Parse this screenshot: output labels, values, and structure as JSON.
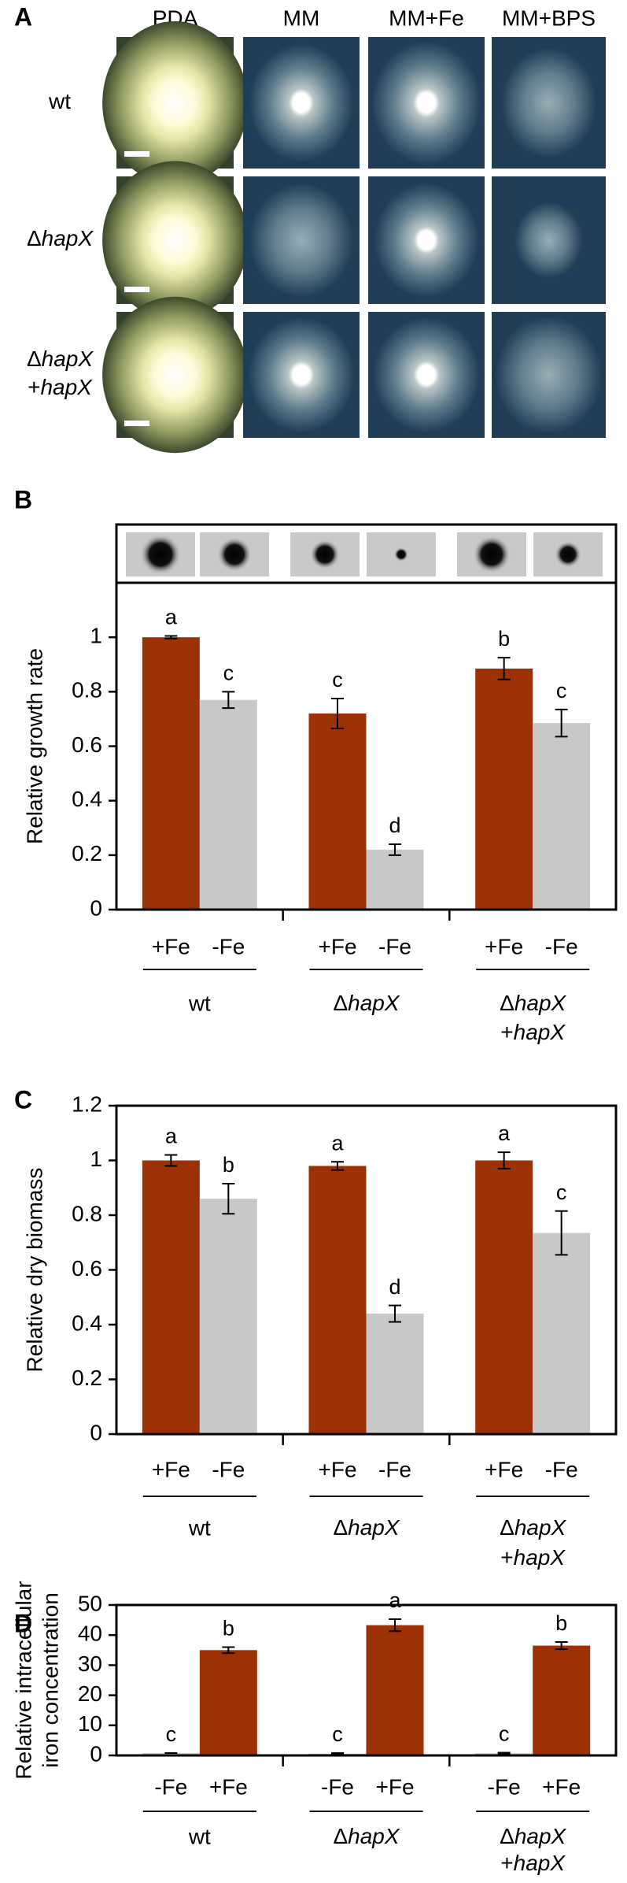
{
  "panel_a": {
    "panel": "A",
    "columns": [
      "PDA",
      "MM",
      "MM+Fe",
      "MM+BPS"
    ],
    "rows": [
      [
        "wt"
      ],
      [
        "ΔhapX"
      ],
      [
        "ΔhapX",
        "+hapX"
      ]
    ]
  },
  "chart_data": [
    {
      "type": "bar",
      "panel": "B",
      "y_label": "Relative growth rate",
      "groups": [
        [
          "wt"
        ],
        [
          "ΔhapX"
        ],
        [
          "ΔhapX",
          "+hapX"
        ]
      ],
      "ylim": [
        0,
        1.2
      ],
      "yticks": [
        0,
        0.2,
        0.4,
        0.6,
        0.8,
        1
      ],
      "series": [
        {
          "name": "+Fe",
          "color": "#9c3106",
          "values": [
            1.0,
            0.72,
            0.885
          ],
          "errors": [
            0.005,
            0.055,
            0.04
          ],
          "letters": [
            "a",
            "c",
            "b"
          ]
        },
        {
          "name": "-Fe",
          "color": "#c8c8c8",
          "values": [
            0.77,
            0.22,
            0.685
          ],
          "errors": [
            0.03,
            0.02,
            0.05
          ],
          "letters": [
            "c",
            "d",
            "c"
          ]
        }
      ]
    },
    {
      "type": "bar",
      "panel": "C",
      "y_label": "Relative dry biomass",
      "groups": [
        [
          "wt"
        ],
        [
          "ΔhapX"
        ],
        [
          "ΔhapX",
          "+hapX"
        ]
      ],
      "ylim": [
        0,
        1.2
      ],
      "yticks": [
        0,
        0.2,
        0.4,
        0.6,
        0.8,
        1,
        1.2
      ],
      "series": [
        {
          "name": "+Fe",
          "color": "#9c3106",
          "values": [
            1.0,
            0.98,
            1.0
          ],
          "errors": [
            0.02,
            0.015,
            0.03
          ],
          "letters": [
            "a",
            "a",
            "a"
          ]
        },
        {
          "name": "-Fe",
          "color": "#c8c8c8",
          "values": [
            0.86,
            0.44,
            0.735
          ],
          "errors": [
            0.055,
            0.03,
            0.08
          ],
          "letters": [
            "b",
            "d",
            "c"
          ]
        }
      ]
    },
    {
      "type": "bar",
      "panel": "D",
      "y_label": [
        "Relative intracellular",
        "iron concentration"
      ],
      "groups": [
        [
          "wt"
        ],
        [
          "ΔhapX"
        ],
        [
          "ΔhapX",
          "+hapX"
        ]
      ],
      "ylim": [
        0,
        50
      ],
      "yticks": [
        0,
        10,
        20,
        30,
        40,
        50
      ],
      "series": [
        {
          "name": "-Fe",
          "color": "#c8c8c8",
          "values": [
            0.8,
            0.6,
            0.7
          ],
          "errors": [
            0,
            0.2,
            0.2
          ],
          "letters": [
            "c",
            "c",
            "c"
          ]
        },
        {
          "name": "+Fe",
          "color": "#9c3106",
          "values": [
            35,
            43.3,
            36.5
          ],
          "errors": [
            1,
            2,
            1.2
          ],
          "letters": [
            "b",
            "a",
            "b"
          ]
        }
      ]
    }
  ]
}
